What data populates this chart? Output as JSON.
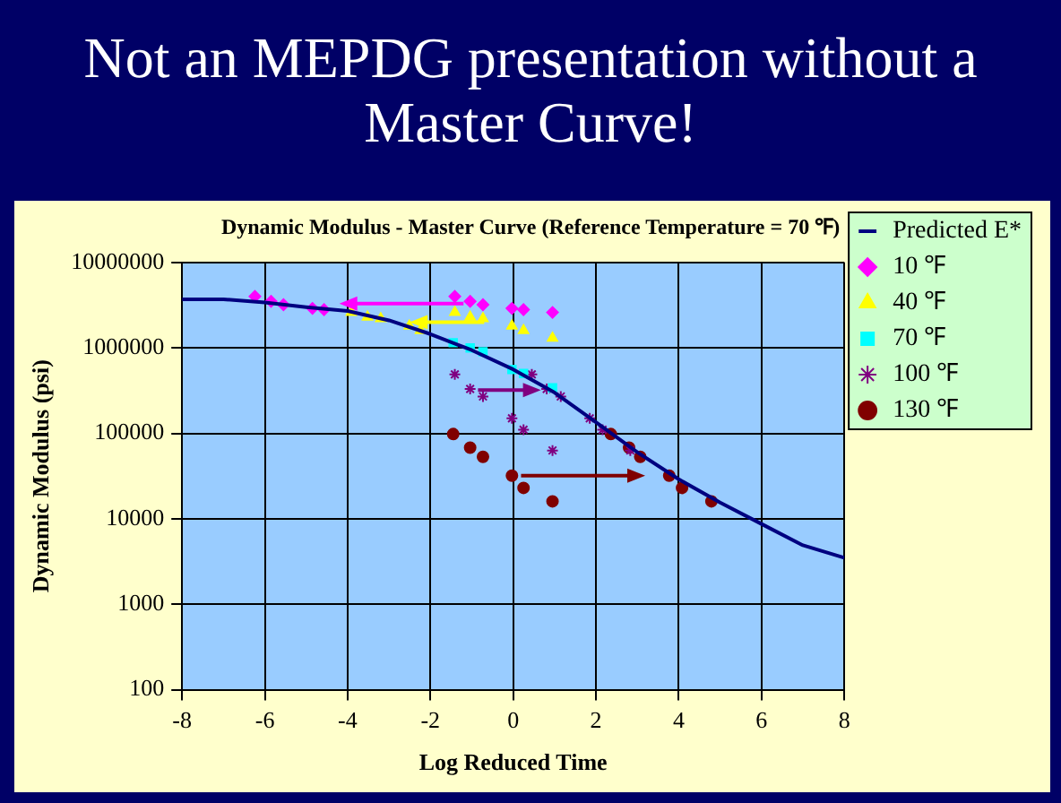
{
  "chart_data": {
    "type": "scatter",
    "title": "Not an MEPDG presentation without a Master Curve!",
    "subtitle": "Dynamic Modulus - Master Curve (Reference Temperature = 70 ℉)",
    "xlabel": "Log Reduced Time",
    "ylabel": "Dynamic Modulus (psi)",
    "xlim": [
      -8,
      8
    ],
    "xticks": [
      -8,
      -6,
      -4,
      -2,
      0,
      2,
      4,
      6,
      8
    ],
    "ylim": [
      100,
      10000000
    ],
    "yticks": [
      100,
      1000,
      10000,
      100000,
      1000000,
      10000000
    ],
    "log": "y",
    "grid": true,
    "legend": "top right",
    "series": [
      {
        "name": "Predicted E*",
        "type": "line",
        "color": "#000080",
        "marker": "none",
        "line_style": "solid",
        "x": [
          -8,
          -7,
          -6,
          -5,
          -4,
          -3,
          -2,
          -1,
          0,
          1,
          2,
          3,
          4,
          5,
          6,
          7,
          8
        ],
        "values": [
          3700000,
          3700000,
          3400000,
          3000000,
          2700000,
          2100000,
          1450000,
          940000,
          560000,
          300000,
          135000,
          60000,
          29000,
          15500,
          8700,
          4900,
          3500
        ]
      },
      {
        "name": "10 ℉",
        "color": "#ff00ff",
        "marker": "diamond",
        "x": [
          -6.24,
          -5.85,
          -5.55,
          -4.85,
          -4.57,
          -1.41,
          -1.04,
          -0.73,
          -0.03,
          0.25,
          0.95
        ],
        "values": [
          4000000,
          3500000,
          3200000,
          2900000,
          2800000,
          4000000,
          3500000,
          3200000,
          2900000,
          2800000,
          2600000
        ]
      },
      {
        "name": "40 ℉",
        "color": "#ffff00",
        "marker": "triangle",
        "x": [
          -3.91,
          -3.52,
          -3.2,
          -2.51,
          -2.24,
          -1.41,
          -1.04,
          -0.73,
          -0.03,
          0.25,
          0.95
        ],
        "values": [
          2600000,
          2300000,
          2200000,
          1800000,
          1600000,
          2600000,
          2300000,
          2200000,
          1800000,
          1600000,
          1300000
        ]
      },
      {
        "name": "70 ℉",
        "color": "#00ffff",
        "marker": "square",
        "x": [
          -1.45,
          -1.04,
          -0.73,
          -0.03,
          0.25,
          0.95
        ],
        "values": [
          1150000,
          1000000,
          900000,
          560000,
          500000,
          340000
        ]
      },
      {
        "name": "100 ℉",
        "color": "#800080",
        "marker": "cross",
        "x": [
          -1.41,
          -1.04,
          -0.73,
          -0.03,
          0.25,
          0.95,
          0.45,
          0.81,
          1.15,
          1.85,
          2.16,
          2.83
        ],
        "values": [
          490000,
          330000,
          270000,
          150000,
          110000,
          63000,
          490000,
          330000,
          270000,
          150000,
          110000,
          63000
        ]
      },
      {
        "name": "130 ℉",
        "color": "#800000",
        "marker": "circle",
        "x": [
          -1.45,
          -1.04,
          -0.73,
          -0.03,
          0.25,
          0.95,
          2.36,
          2.8,
          3.07,
          3.77,
          4.08,
          4.79
        ],
        "values": [
          98000,
          68000,
          53000,
          32000,
          23000,
          16000,
          98000,
          68000,
          53000,
          32000,
          23000,
          16000
        ]
      }
    ]
  }
}
